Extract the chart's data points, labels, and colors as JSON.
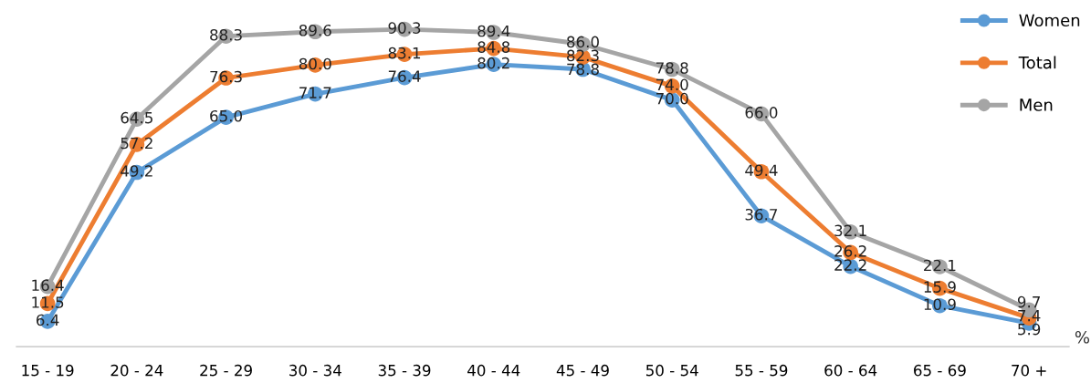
{
  "chart_data": {
    "type": "line",
    "ylabel": "%",
    "grid": false,
    "categories": [
      "15 - 19",
      "20 - 24",
      "25 - 29",
      "30 - 34",
      "35 - 39",
      "40 - 44",
      "45 - 49",
      "50 - 54",
      "55 - 59",
      "60 - 64",
      "65 - 69",
      "70 +"
    ],
    "series": [
      {
        "name": "Women",
        "color": "#5b9bd5",
        "values": [
          6.4,
          49.2,
          65.0,
          71.7,
          76.4,
          80.2,
          78.8,
          70.0,
          36.7,
          22.2,
          10.9,
          5.9
        ],
        "value_labels": [
          "6.4",
          "49.2",
          "65.0",
          "71.7",
          "76.4",
          "80.2",
          "78.8",
          "70.0",
          "36.7",
          "22.2",
          "10.9",
          "5.9"
        ]
      },
      {
        "name": "Total",
        "color": "#ed7d31",
        "values": [
          11.5,
          57.2,
          76.3,
          80.0,
          83.1,
          84.8,
          82.3,
          74.0,
          49.4,
          26.2,
          15.9,
          7.4
        ],
        "value_labels": [
          "11.5",
          "57.2",
          "76.3",
          "80.0",
          "83.1",
          "84.8",
          "82.3",
          "74.0",
          "49.4",
          "26.2",
          "15.9",
          "7.4"
        ]
      },
      {
        "name": "Men",
        "color": "#a5a5a5",
        "values": [
          16.4,
          64.5,
          88.3,
          89.6,
          90.3,
          89.4,
          86.0,
          78.8,
          66.0,
          32.1,
          22.1,
          9.7
        ],
        "value_labels": [
          "16.4",
          "64.5",
          "88.3",
          "89.6",
          "90.3",
          "89.4",
          "86.0",
          "78.8",
          "66.0",
          "32.1",
          "22.1",
          "9.7"
        ]
      }
    ],
    "marker": "circle",
    "line_style": "solid",
    "legend": "top right",
    "tick_labels": "x"
  }
}
